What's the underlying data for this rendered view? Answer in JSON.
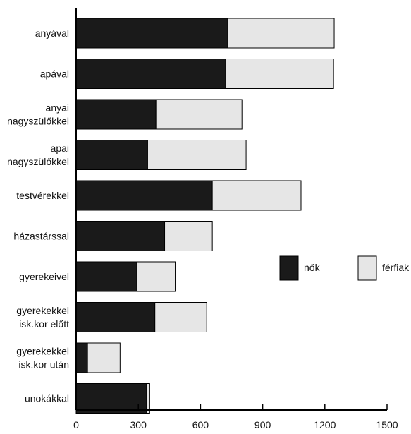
{
  "chart_data": {
    "type": "bar",
    "orientation": "horizontal",
    "stacked": true,
    "categories": [
      [
        "anyával"
      ],
      [
        "apával"
      ],
      [
        "anyai",
        "nagyszülőkkel"
      ],
      [
        "apai",
        "nagyszülőkkel"
      ],
      [
        "testvérekkel"
      ],
      [
        "házastárssal"
      ],
      [
        "gyerekeivel"
      ],
      [
        "gyerekekkel",
        "isk.kor előtt"
      ],
      [
        "gyerekekkel",
        "isk.kor után"
      ],
      [
        "unokákkal"
      ]
    ],
    "series": [
      {
        "name": "nők",
        "color": "#1a1a1a",
        "values": [
          732,
          722,
          385,
          345,
          657,
          427,
          293,
          380,
          55,
          340
        ]
      },
      {
        "name": "férfiak",
        "color": "#e6e6e6",
        "values": [
          513,
          520,
          415,
          475,
          428,
          230,
          185,
          250,
          157,
          15
        ]
      }
    ],
    "xlim": [
      0,
      1500
    ],
    "xticks": [
      0,
      300,
      600,
      900,
      1200,
      1500
    ],
    "xticklabels": [
      "0",
      "300",
      "600",
      "900",
      "1200",
      "1500"
    ],
    "grid": false,
    "legend_position": "right"
  }
}
